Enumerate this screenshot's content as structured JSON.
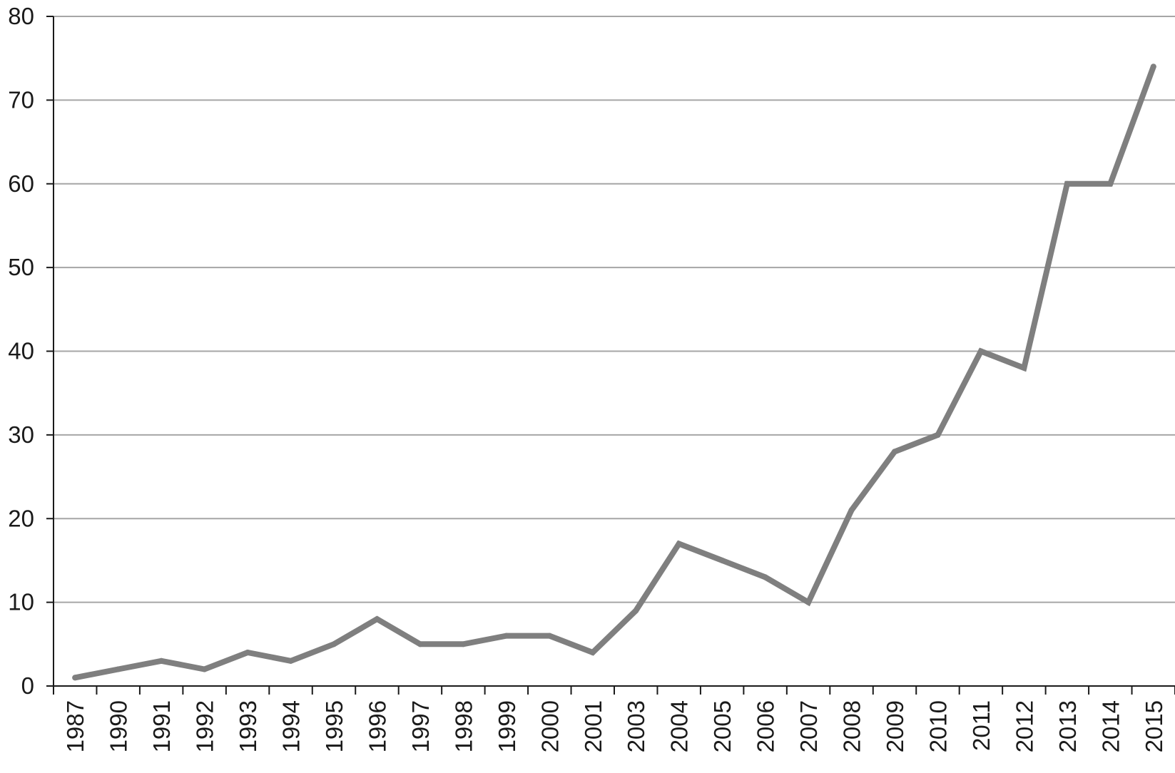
{
  "chart_data": {
    "type": "line",
    "title": "",
    "xlabel": "",
    "ylabel": "",
    "ylim": [
      0,
      80
    ],
    "yticks": [
      "0",
      "10",
      "20",
      "30",
      "40",
      "50",
      "60",
      "70",
      "80"
    ],
    "grid": "horizontal",
    "legend": "none",
    "categories": [
      "1987",
      "1990",
      "1991",
      "1992",
      "1993",
      "1994",
      "1995",
      "1996",
      "1997",
      "1998",
      "1999",
      "2000",
      "2001",
      "2003",
      "2004",
      "2005",
      "2006",
      "2007",
      "2008",
      "2009",
      "2010",
      "2011",
      "2012",
      "2013",
      "2014",
      "2015"
    ],
    "series": [
      {
        "values": [
          1,
          2,
          3,
          2,
          4,
          3,
          5,
          8,
          5,
          5,
          6,
          6,
          4,
          9,
          17,
          15,
          13,
          10,
          21,
          28,
          30,
          40,
          38,
          60,
          60,
          74
        ]
      }
    ],
    "colors": {
      "line": "#7f7f7f",
      "grid": "#a6a6a6",
      "axis": "#1a1a1a"
    }
  }
}
